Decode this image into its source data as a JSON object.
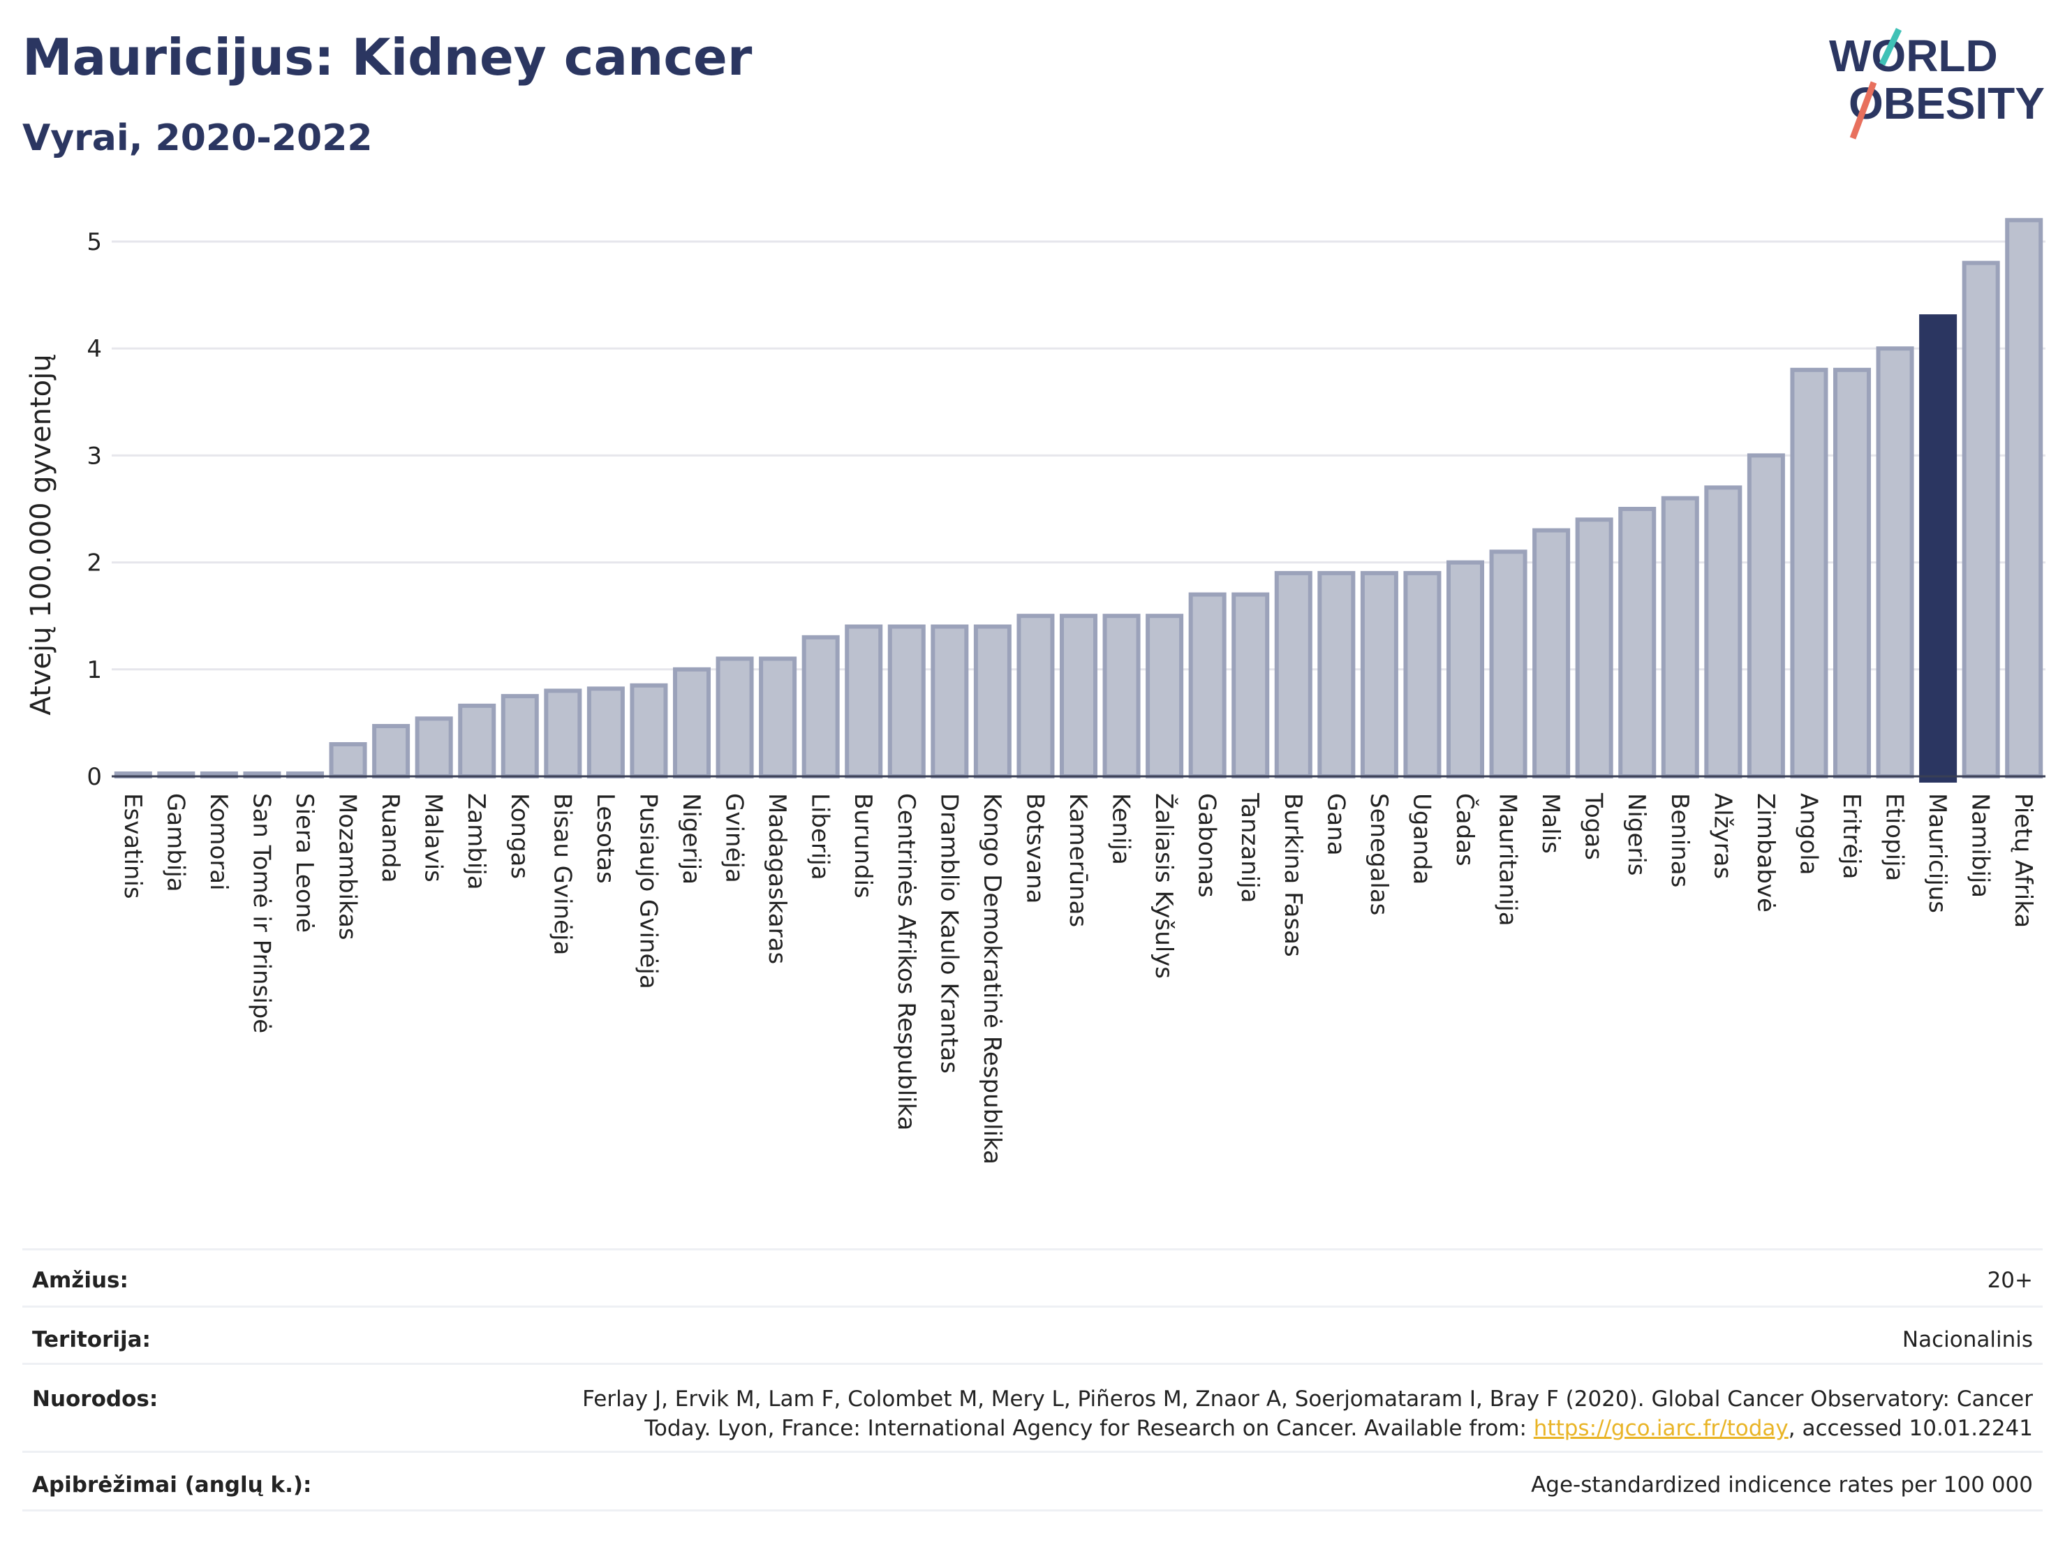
{
  "header": {
    "title": "Mauricijus: Kidney cancer",
    "subtitle": "Vyrai, 2020-2022"
  },
  "logo": {
    "line1": "WORLD",
    "line2": "OBESITY"
  },
  "colors": {
    "bar": "#bcc1cf",
    "bar_border": "#9ba2ba",
    "highlight": "#2b3661",
    "title": "#2b3661",
    "grid": "#e6e6ec"
  },
  "chart_data": {
    "type": "bar",
    "ylabel": "Atvejų 100.000 gyventojų",
    "ylim": [
      0,
      5.3
    ],
    "yticks": [
      0,
      1,
      2,
      3,
      4,
      5
    ],
    "grid": true,
    "highlight": "Mauricijus",
    "categories": [
      "Esvatinis",
      "Gambija",
      "Komorai",
      "San Tomė ir Prinsipė",
      "Siera Leonė",
      "Mozambikas",
      "Ruanda",
      "Malavis",
      "Zambija",
      "Kongas",
      "Bisau Gvinėja",
      "Lesotas",
      "Pusiaujo Gvinėja",
      "Nigerija",
      "Gvinėja",
      "Madagaskaras",
      "Liberija",
      "Burundis",
      "Centrinės Afrikos Respublika",
      "Dramblio Kaulo Krantas",
      "Kongo Demokratinė Respublika",
      "Botsvana",
      "Kamerūnas",
      "Kenija",
      "Žaliasis Kyšulys",
      "Gabonas",
      "Tanzanija",
      "Burkina Fasas",
      "Gana",
      "Senegalas",
      "Uganda",
      "Čadas",
      "Mauritanija",
      "Malis",
      "Togas",
      "Nigeris",
      "Beninas",
      "Alžyras",
      "Zimbabvė",
      "Angola",
      "Eritrėja",
      "Etiopija",
      "Mauricijus",
      "Namibija",
      "Pietų Afrika"
    ],
    "values": [
      0,
      0,
      0,
      0,
      0,
      0.3,
      0.47,
      0.54,
      0.66,
      0.75,
      0.8,
      0.82,
      0.85,
      1.0,
      1.1,
      1.1,
      1.3,
      1.4,
      1.4,
      1.4,
      1.4,
      1.5,
      1.5,
      1.5,
      1.5,
      1.7,
      1.7,
      1.9,
      1.9,
      1.9,
      1.9,
      2.0,
      2.1,
      2.3,
      2.4,
      2.5,
      2.6,
      2.7,
      3.0,
      3.8,
      3.8,
      4.0,
      4.3,
      4.8,
      5.2
    ]
  },
  "meta": {
    "age_label": "Amžius:",
    "age_value": "20+",
    "territory_label": "Teritorija:",
    "territory_value": "Nacionalinis",
    "references_label": "Nuorodos:",
    "references_line1": "Ferlay J, Ervik M, Lam F, Colombet M, Mery L, Piñeros M, Znaor A, Soerjomataram I, Bray F (2020). Global Cancer Observatory: Cancer",
    "references_line2_pre": "Today. Lyon, France: International Agency for Research on Cancer. Available from: ",
    "references_link": "https://gco.iarc.fr/today",
    "references_line2_post": ", accessed 10.01.2241",
    "definitions_label": "Apibrėžimai (anglų k.):",
    "definitions_value": "Age-standardized indicence rates per 100 000"
  }
}
